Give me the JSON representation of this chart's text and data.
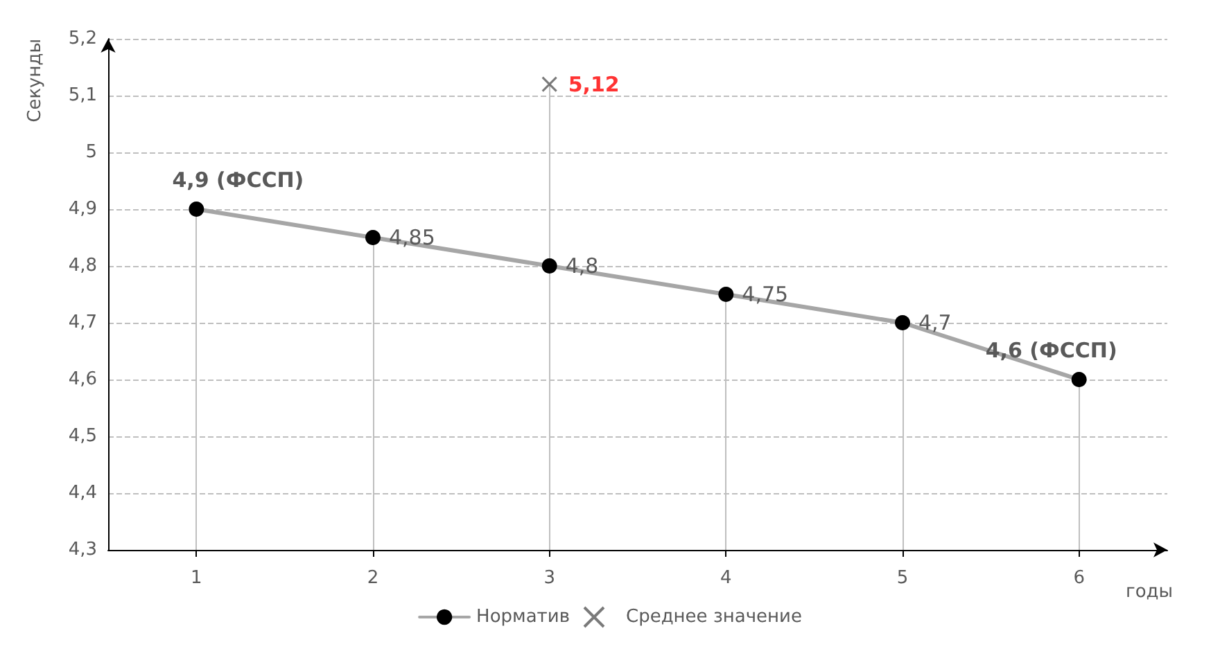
{
  "chart_data": {
    "type": "line",
    "xlabel": "годы",
    "ylabel": "Секунды",
    "x": [
      1,
      2,
      3,
      4,
      5,
      6
    ],
    "series": [
      {
        "name": "Норматив",
        "color": "#a6a6a6",
        "marker": "circle",
        "values": [
          4.9,
          4.85,
          4.8,
          4.75,
          4.7,
          4.6
        ],
        "value_labels": [
          "4,9 (ФССП)",
          "4,85",
          "4,8",
          "4,75",
          "4,7",
          "4,6 (ФССП)"
        ]
      },
      {
        "name": "Среднее значение",
        "type": "lollipop",
        "color": "#595959",
        "marker": "cross",
        "x": [
          3
        ],
        "values": [
          5.12
        ],
        "value_labels": [
          "5,12"
        ]
      }
    ],
    "xlim": [
      0.5,
      6.5
    ],
    "xticks": [
      1,
      2,
      3,
      4,
      5,
      6
    ],
    "ylim": [
      4.3,
      5.2
    ],
    "yticks": [
      {
        "value": 4.3,
        "label": "4,3"
      },
      {
        "value": 4.4,
        "label": "4,4"
      },
      {
        "value": 4.5,
        "label": "4,5"
      },
      {
        "value": 4.6,
        "label": "4,6"
      },
      {
        "value": 4.7,
        "label": "4,7"
      },
      {
        "value": 4.8,
        "label": "4,8"
      },
      {
        "value": 4.9,
        "label": "4,9"
      },
      {
        "value": 5,
        "label": "5"
      },
      {
        "value": 5.1,
        "label": "5,1"
      },
      {
        "value": 5.2,
        "label": "5,2"
      }
    ],
    "grid": "y",
    "legend": "bottom"
  }
}
